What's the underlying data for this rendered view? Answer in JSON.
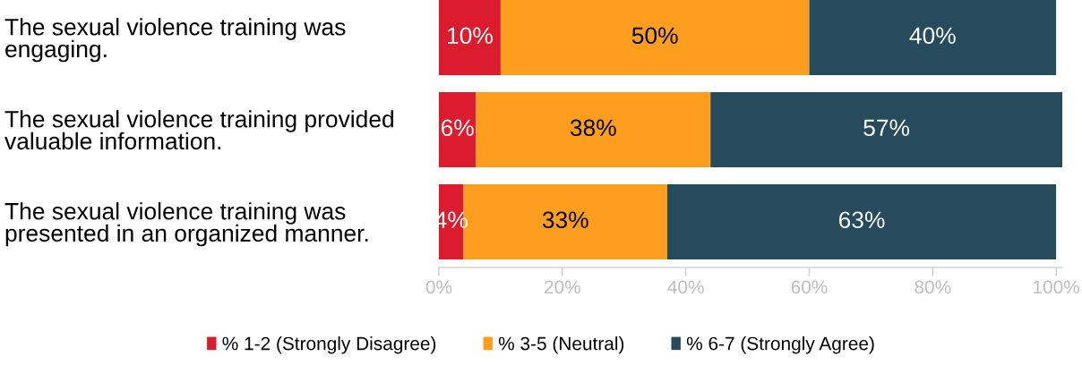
{
  "chart_data": {
    "type": "bar",
    "orientation": "horizontal",
    "stacked": true,
    "categories": [
      "The sexual violence training was\nengaging.",
      "The sexual violence training provided\nvaluable information.",
      "The sexual violence training was\npresented in an organized manner."
    ],
    "series": [
      {
        "name": "% 1-2 (Strongly Disagree)",
        "color": "#da1c2e",
        "values": [
          10,
          6,
          4
        ],
        "value_labels": [
          "10%",
          "6%",
          "4%"
        ]
      },
      {
        "name": "% 3-5 (Neutral)",
        "color": "#fd9e1e",
        "values": [
          50,
          38,
          33
        ],
        "value_labels": [
          "50%",
          "38%",
          "33%"
        ]
      },
      {
        "name": "% 6-7 (Strongly Agree)",
        "color": "#254b5c",
        "values": [
          40,
          57,
          63
        ],
        "value_labels": [
          "40%",
          "57%",
          "63%"
        ]
      }
    ],
    "xlim": [
      0,
      101
    ],
    "xticks": [
      {
        "value": 0,
        "label": "0%"
      },
      {
        "value": 20,
        "label": "20%"
      },
      {
        "value": 40,
        "label": "40%"
      },
      {
        "value": 60,
        "label": "60%"
      },
      {
        "value": 80,
        "label": "80%"
      },
      {
        "value": 100,
        "label": "100%"
      }
    ],
    "legend": "bottom"
  }
}
